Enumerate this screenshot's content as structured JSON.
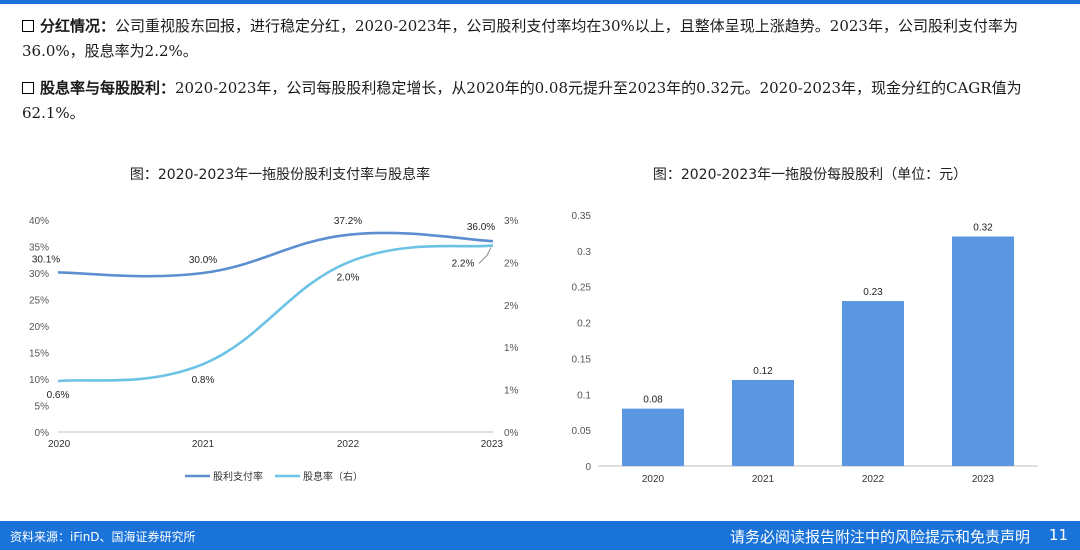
{
  "text": {
    "p1_head": "分红情况：",
    "p1_body": "公司重视股东回报，进行稳定分红，2020-2023年，公司股利支付率均在30%以上，且整体呈现上涨趋势。2023年，公司股利支付率为36.0%，股息率为2.2%。",
    "p2_head": "股息率与每股股利：",
    "p2_body": "2020-2023年，公司每股股利稳定增长，从2020年的0.08元提升至2023年的0.32元。2020-2023年，现金分红的CAGR值为62.1%。"
  },
  "footer": {
    "source": "资料来源：iFinD、国海证券研究所",
    "disclaimer": "请务必阅读报告附注中的风险提示和免责声明",
    "page": "11"
  },
  "colors": {
    "payout": "#5b8fd0",
    "yield": "#6cc3e6",
    "bar": "#5b96e0",
    "footer": "#1a73d9"
  },
  "chart_data": [
    {
      "type": "line",
      "title": "图：2020-2023年一拖股份股利支付率与股息率",
      "categories": [
        "2020",
        "2021",
        "2022",
        "2023"
      ],
      "series": [
        {
          "name": "股利支付率",
          "axis": "left",
          "values": [
            30.1,
            30.0,
            37.2,
            36.0
          ],
          "labels": [
            "30.1%",
            "30.0%",
            "37.2%",
            "36.0%"
          ]
        },
        {
          "name": "股息率（右）",
          "axis": "right",
          "values": [
            0.6,
            0.8,
            2.0,
            2.2
          ],
          "labels": [
            "0.6%",
            "0.8%",
            "2.0%",
            "2.2%"
          ]
        }
      ],
      "y_left": {
        "ylim": [
          0,
          40
        ],
        "ticks": [
          "0%",
          "5%",
          "10%",
          "15%",
          "20%",
          "25%",
          "30%",
          "35%",
          "40%"
        ]
      },
      "y_right": {
        "ylim": [
          0,
          2.5
        ],
        "ticks": [
          "0%",
          "1%",
          "1%",
          "2%",
          "2%",
          "3%"
        ]
      },
      "legend": "bottom",
      "grid": false
    },
    {
      "type": "bar",
      "title": "图：2020-2023年一拖股份每股股利（单位：元）",
      "categories": [
        "2020",
        "2021",
        "2022",
        "2023"
      ],
      "values": [
        0.08,
        0.12,
        0.23,
        0.32
      ],
      "labels": [
        "0.08",
        "0.12",
        "0.23",
        "0.32"
      ],
      "ylim": [
        0,
        0.35
      ],
      "ticks": [
        "0",
        "0.05",
        "0.1",
        "0.15",
        "0.2",
        "0.25",
        "0.3",
        "0.35"
      ],
      "grid": false
    }
  ]
}
